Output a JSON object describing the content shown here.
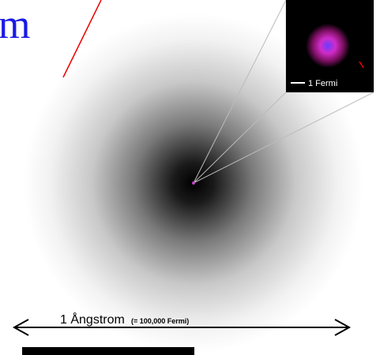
{
  "title_fragment": "m",
  "inset": {
    "scale_label": "1 Fermi"
  },
  "scale": {
    "label": "1 Ångstrom",
    "note": "(= 100,000 Fermi)"
  }
}
